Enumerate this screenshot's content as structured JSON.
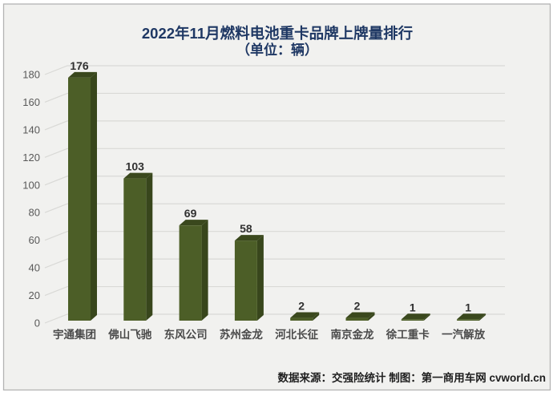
{
  "title": {
    "line1": "2022年11月燃料电池重卡品牌上牌量排行",
    "line2": "（单位：辆）"
  },
  "footer": {
    "source_note": "数据来源：交强险统计 制图：第一商用车网 cvworld.cn"
  },
  "chart_data": {
    "type": "bar",
    "style": "3d-column",
    "title": "2022年11月燃料电池重卡品牌上牌量排行（单位：辆）",
    "categories": [
      "宇通集团",
      "佛山飞驰",
      "东风公司",
      "苏州金龙",
      "河北长征",
      "南京金龙",
      "徐工重卡",
      "一汽解放"
    ],
    "values": [
      176,
      103,
      69,
      58,
      2,
      2,
      1,
      1
    ],
    "value_labels": [
      "176",
      "103",
      "69",
      "58",
      "2",
      "2",
      "1",
      "1"
    ],
    "xlabel": "",
    "ylabel": "",
    "ylim": [
      0,
      180
    ],
    "ytick_step": 20,
    "yticks": [
      0,
      20,
      40,
      60,
      80,
      100,
      120,
      140,
      160,
      180
    ],
    "grid": true,
    "legend": false,
    "colors": {
      "background": "#f1f1ef",
      "frame_border": "#b3b3b3",
      "grid_line": "#d9d9d6",
      "bar_front": "#4c5e27",
      "bar_top": "#3a481d",
      "bar_side": "#38461c",
      "title_text": "#1f3864",
      "tick_label": "#595959",
      "category_label": "#4a4a4a",
      "value_label": "#303030",
      "footer_text": "#1f1f1f"
    }
  }
}
